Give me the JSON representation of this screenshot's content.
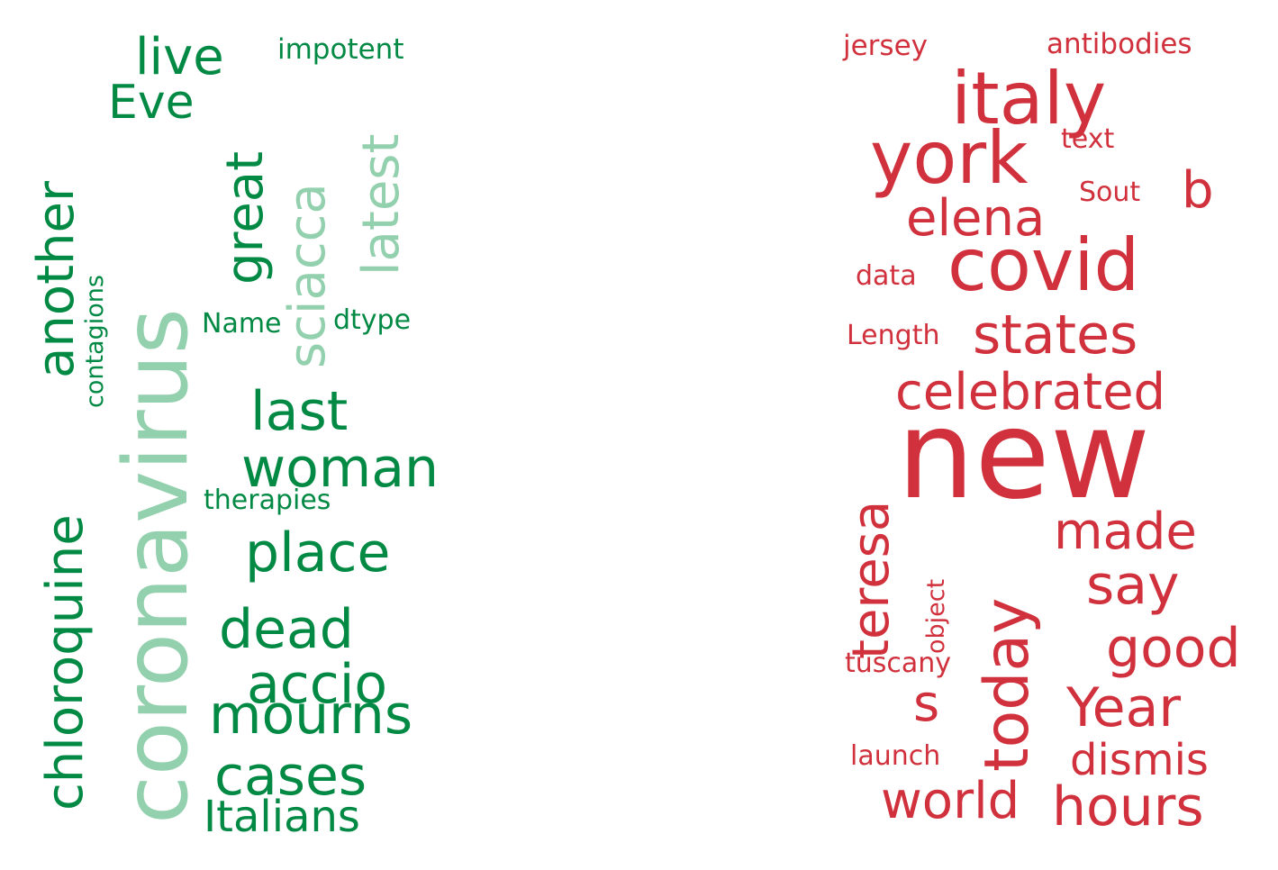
{
  "palette": {
    "green": "#028A45",
    "light_green": "#93D0AE",
    "red": "#D0313C"
  },
  "left_cloud": {
    "coronavirus": "coronavirus",
    "chloroquine": "chloroquine",
    "another": "another",
    "contagions": "contagions",
    "live": "live",
    "eve": "Eve",
    "impotent": "impotent",
    "great": "great",
    "sciacca": "sciacca",
    "latest": "latest",
    "name": "Name",
    "dtype": "dtype",
    "last": "last",
    "woman": "woman",
    "therapies": "therapies",
    "place": "place",
    "dead": "dead",
    "accio": "accio",
    "mourns": "mourns",
    "cases": "cases",
    "italians": "Italians"
  },
  "right_cloud": {
    "jersey": "jersey",
    "antibodies": "antibodies",
    "italy": "italy",
    "york": "york",
    "text": "text",
    "b": "b",
    "sout": "Sout",
    "elena": "elena",
    "covid": "covid",
    "data": "data",
    "length": "Length",
    "states": "states",
    "celebrated": "celebrated",
    "new": "new",
    "teresa": "teresa",
    "object": "object",
    "today": "today",
    "made": "made",
    "say": "say",
    "good": "good",
    "tuscany": "tuscany",
    "s": "s",
    "year": "Year",
    "launch": "launch",
    "dismis": "dismis",
    "world": "world",
    "hours": "hours"
  }
}
